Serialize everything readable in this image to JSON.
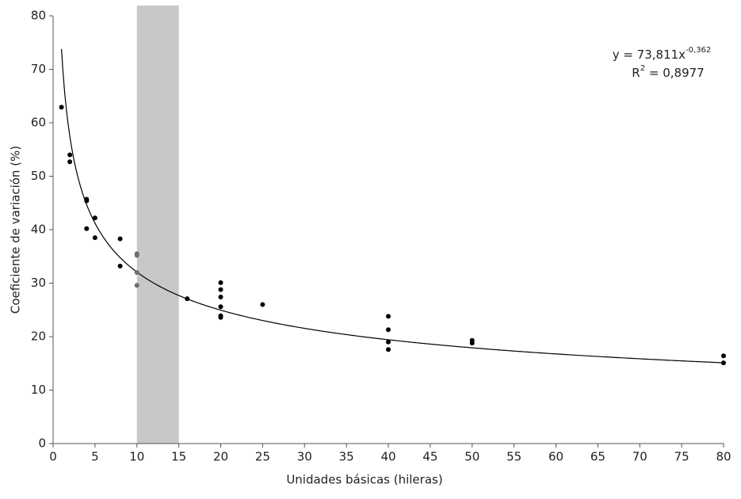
{
  "chart_data": {
    "type": "scatter",
    "xlabel": "Unidades básicas (hileras)",
    "ylabel": "Coeficiente de variación (%)",
    "xlim": [
      0,
      80
    ],
    "ylim": [
      0,
      80
    ],
    "xticks": [
      0,
      5,
      10,
      15,
      20,
      25,
      30,
      35,
      40,
      45,
      50,
      55,
      60,
      65,
      70,
      75,
      80
    ],
    "yticks": [
      0,
      10,
      20,
      30,
      40,
      50,
      60,
      70,
      80
    ],
    "grid": false,
    "highlight": {
      "x": [
        10,
        15
      ],
      "color": "#c8c8c8"
    },
    "series": [
      {
        "color": "#000000",
        "x": [
          1,
          2,
          2,
          4,
          4,
          4,
          5,
          5,
          8,
          8,
          16,
          20,
          20,
          20,
          20,
          20,
          20,
          25,
          40,
          40,
          40,
          40,
          50,
          50,
          80,
          80
        ],
        "values": [
          62.9,
          54,
          52.7,
          45.7,
          45.4,
          40.2,
          42.2,
          38.5,
          38.3,
          33.2,
          27.1,
          30.1,
          28.8,
          27.4,
          25.6,
          23.9,
          23.6,
          26,
          23.8,
          21.3,
          19,
          17.6,
          19.3,
          18.8,
          16.4,
          15.1
        ]
      },
      {
        "color": "#6e6e6e",
        "x": [
          10,
          10,
          10,
          10
        ],
        "values": [
          35.5,
          35.2,
          32,
          29.6
        ]
      }
    ],
    "fit": {
      "a": 73.811,
      "b": -0.362,
      "xrange": [
        1,
        80
      ],
      "color": "#000000"
    },
    "equation": {
      "main": "y = 73,811x",
      "sup": "-0,362"
    },
    "r2": {
      "base": "R",
      "sup": "2",
      "rest": " = 0,8977"
    }
  }
}
